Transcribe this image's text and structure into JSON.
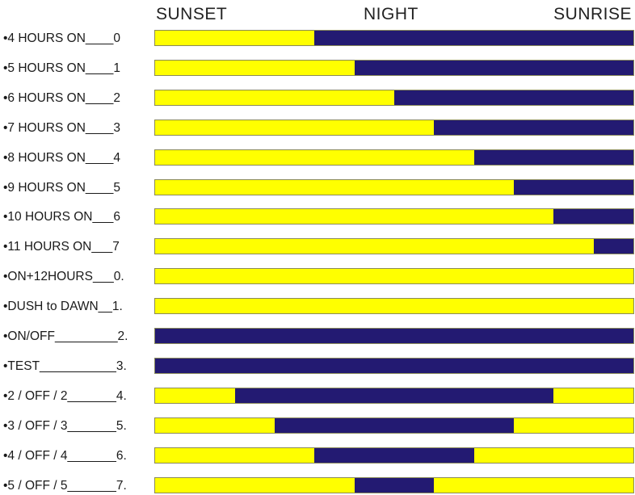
{
  "header": {
    "sunset": "SUNSET",
    "night": "NIGHT",
    "sunrise": "SUNRISE"
  },
  "colors": {
    "on": "#ffff00",
    "off": "#231a72"
  },
  "rows": [
    {
      "label": "•4 HOURS ON____0",
      "on_fraction": [
        [
          0,
          0.333
        ]
      ]
    },
    {
      "label": "•5 HOURS ON____1",
      "on_fraction": [
        [
          0,
          0.417
        ]
      ]
    },
    {
      "label": "•6 HOURS ON____2",
      "on_fraction": [
        [
          0,
          0.5
        ]
      ]
    },
    {
      "label": "•7 HOURS ON____3",
      "on_fraction": [
        [
          0,
          0.583
        ]
      ]
    },
    {
      "label": "•8 HOURS ON____4",
      "on_fraction": [
        [
          0,
          0.667
        ]
      ]
    },
    {
      "label": "•9 HOURS ON____5",
      "on_fraction": [
        [
          0,
          0.75
        ]
      ]
    },
    {
      "label": "•10 HOURS ON___6",
      "on_fraction": [
        [
          0,
          0.833
        ]
      ]
    },
    {
      "label": "•11 HOURS ON___7",
      "on_fraction": [
        [
          0,
          0.917
        ]
      ]
    },
    {
      "label": "•ON+12HOURS___0.",
      "on_fraction": [
        [
          0,
          1
        ]
      ]
    },
    {
      "label": "•DUSH to DAWN__1.",
      "on_fraction": [
        [
          0,
          1
        ]
      ]
    },
    {
      "label": "•ON/OFF_________2.",
      "on_fraction": []
    },
    {
      "label": "•TEST___________3.",
      "on_fraction": []
    },
    {
      "label": "•2 / OFF / 2_______4.",
      "on_fraction": [
        [
          0,
          0.167
        ],
        [
          0.833,
          1
        ]
      ]
    },
    {
      "label": "•3 / OFF / 3_______5.",
      "on_fraction": [
        [
          0,
          0.25
        ],
        [
          0.75,
          1
        ]
      ]
    },
    {
      "label": "•4 / OFF / 4_______6.",
      "on_fraction": [
        [
          0,
          0.333
        ],
        [
          0.667,
          1
        ]
      ]
    },
    {
      "label": "•5 / OFF / 5_______7.",
      "on_fraction": [
        [
          0,
          0.417
        ],
        [
          0.583,
          1
        ]
      ]
    }
  ]
}
